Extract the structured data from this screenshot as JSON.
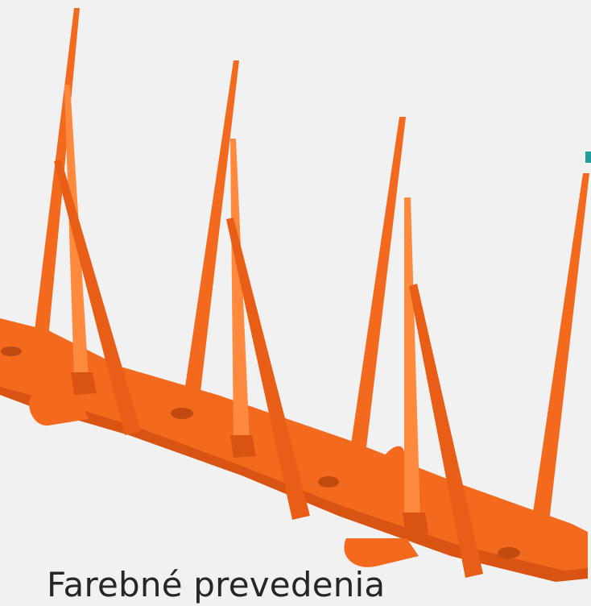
{
  "image": {
    "subject": "orange plastic bird-repellent spike strip",
    "background_color": "#f1f1f1",
    "primary_color": "#f36a1f",
    "shadow_color": "#d95312",
    "highlight_color": "#ff8a3d",
    "accent_mark_color": "#1f9e9a"
  },
  "caption": {
    "text": "Farebné prevedenia"
  }
}
